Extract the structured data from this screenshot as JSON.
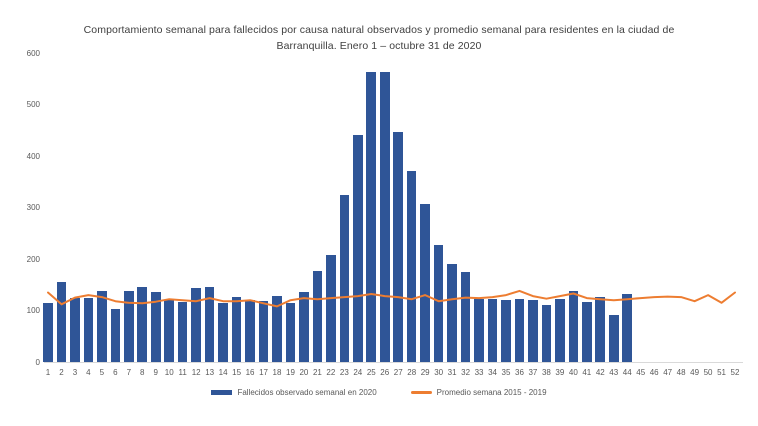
{
  "title": "Comportamiento semanal para fallecidos por causa natural observados y promedio semanal para residentes en la ciudad de Barranquilla. Enero 1 – octubre 31 de 2020",
  "colors": {
    "bar": "#2F5597",
    "line": "#ED7D31",
    "title_text": "#3f3f3f",
    "axis_text": "#595959",
    "axis_line": "#d9d9d9",
    "background": "#ffffff"
  },
  "chart_data": {
    "type": "bar",
    "title": "Comportamiento semanal para fallecidos por causa natural observados y promedio semanal para residentes en la ciudad de Barranquilla. Enero 1 – octubre 31 de 2020",
    "xlabel": "",
    "ylabel": "",
    "ylim": [
      0,
      600
    ],
    "yticks": [
      0,
      100,
      200,
      300,
      400,
      500,
      600
    ],
    "grid": false,
    "legend_position": "bottom",
    "categories": [
      1,
      2,
      3,
      4,
      5,
      6,
      7,
      8,
      9,
      10,
      11,
      12,
      13,
      14,
      15,
      16,
      17,
      18,
      19,
      20,
      21,
      22,
      23,
      24,
      25,
      26,
      27,
      28,
      29,
      30,
      31,
      32,
      33,
      34,
      35,
      36,
      37,
      38,
      39,
      40,
      41,
      42,
      43,
      44,
      45,
      46,
      47,
      48,
      49,
      50,
      51,
      52
    ],
    "series": [
      {
        "name": "Fallecidos observado semanal en 2020",
        "type": "bar",
        "color": "#2F5597",
        "values": [
          115,
          155,
          125,
          125,
          138,
          103,
          137,
          145,
          136,
          120,
          117,
          144,
          146,
          114,
          127,
          121,
          119,
          128,
          114,
          135,
          177,
          207,
          324,
          440,
          563,
          563,
          447,
          370,
          307,
          228,
          190,
          175,
          123,
          123,
          121,
          122,
          121,
          110,
          122,
          138,
          117,
          126,
          92,
          133,
          null,
          null,
          null,
          null,
          null,
          null,
          null,
          null
        ]
      },
      {
        "name": "Promedio semana 2015 - 2019",
        "type": "line",
        "color": "#ED7D31",
        "values": [
          135,
          112,
          125,
          130,
          126,
          118,
          115,
          114,
          117,
          122,
          120,
          118,
          124,
          118,
          118,
          120,
          114,
          108,
          120,
          124,
          122,
          124,
          126,
          128,
          132,
          128,
          126,
          122,
          130,
          118,
          122,
          125,
          124,
          126,
          130,
          138,
          128,
          123,
          128,
          133,
          124,
          122,
          120,
          122,
          124,
          126,
          127,
          126,
          118,
          130,
          115,
          135
        ]
      }
    ]
  }
}
